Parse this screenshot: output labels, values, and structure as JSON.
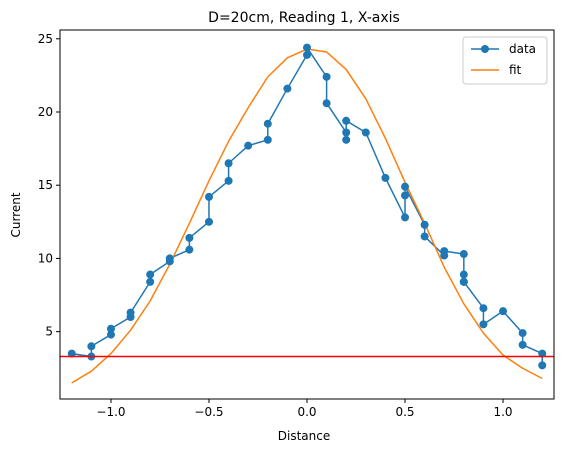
{
  "chart_data": {
    "type": "line",
    "title": "D=20cm, Reading 1, X-axis",
    "xlabel": "Distance",
    "ylabel": "Current",
    "xlim": [
      -1.26,
      1.26
    ],
    "ylim": [
      0.4,
      25.6
    ],
    "x_ticks": [
      -1.0,
      -0.5,
      0.0,
      0.5,
      1.0
    ],
    "x_tick_labels": [
      "−1.0",
      "−0.5",
      "0.0",
      "0.5",
      "1.0"
    ],
    "y_ticks": [
      5,
      10,
      15,
      20,
      25
    ],
    "y_tick_labels": [
      "5",
      "10",
      "15",
      "20",
      "25"
    ],
    "grid": false,
    "legend_position": "top-right",
    "series": [
      {
        "name": "data",
        "color": "#1f77b4",
        "marker": "circle",
        "x": [
          -1.2,
          -1.1,
          -1.1,
          -1.0,
          -1.0,
          -0.9,
          -0.9,
          -0.8,
          -0.8,
          -0.7,
          -0.7,
          -0.6,
          -0.6,
          -0.5,
          -0.5,
          -0.4,
          -0.4,
          -0.3,
          -0.2,
          -0.2,
          -0.1,
          0.0,
          0.0,
          0.1,
          0.1,
          0.2,
          0.2,
          0.2,
          0.3,
          0.4,
          0.5,
          0.5,
          0.5,
          0.6,
          0.6,
          0.7,
          0.7,
          0.8,
          0.8,
          0.8,
          0.8,
          0.9,
          0.9,
          1.0,
          1.1,
          1.1,
          1.2,
          1.2
        ],
        "y": [
          3.5,
          3.3,
          4.0,
          4.8,
          5.2,
          6.0,
          6.3,
          8.4,
          8.9,
          9.8,
          10.0,
          10.6,
          11.4,
          12.5,
          14.2,
          15.3,
          16.5,
          17.7,
          18.1,
          19.2,
          21.6,
          23.9,
          24.4,
          22.4,
          20.6,
          18.6,
          18.1,
          19.4,
          18.6,
          15.5,
          12.8,
          14.3,
          14.9,
          12.3,
          11.5,
          10.2,
          10.5,
          10.3,
          8.9,
          8.4,
          8.4,
          6.6,
          5.5,
          6.4,
          4.9,
          4.1,
          3.5,
          2.7
        ]
      },
      {
        "name": "fit",
        "color": "#ff7f0e",
        "marker": "none",
        "x": [
          -1.2,
          -1.1,
          -1.0,
          -0.9,
          -0.8,
          -0.7,
          -0.6,
          -0.5,
          -0.4,
          -0.3,
          -0.2,
          -0.1,
          0.0,
          0.1,
          0.2,
          0.3,
          0.4,
          0.5,
          0.6,
          0.7,
          0.8,
          0.9,
          1.0,
          1.1,
          1.2
        ],
        "y": [
          1.5,
          2.3,
          3.5,
          5.1,
          7.1,
          9.6,
          12.4,
          15.3,
          18.0,
          20.3,
          22.4,
          23.7,
          24.3,
          24.1,
          22.9,
          20.9,
          18.2,
          15.2,
          12.4,
          9.4,
          6.9,
          4.9,
          3.4,
          2.5,
          1.8
        ]
      }
    ],
    "hline": {
      "y": 3.3,
      "color": "#ff0000"
    }
  }
}
